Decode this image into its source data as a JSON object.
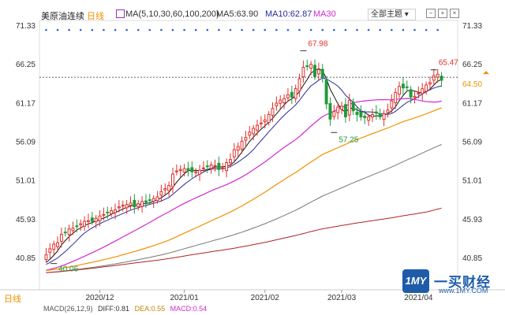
{
  "header": {
    "title": "美原油连续",
    "period": "日线",
    "ma_params": "MA(5,10,30,60,100,200)",
    "ma5": "MA5:63.90",
    "ma10": "MA10:62.87",
    "ma30": "MA30",
    "theme_button": "全部主题"
  },
  "footer": {
    "period": "日线",
    "macd_params": "MACD(26,12,9)",
    "dif": "DIFF:0.81",
    "dea": "DEA:0.55",
    "macd": "MACD:0.54"
  },
  "watermark": {
    "logo": "1MY",
    "name": "一买财经",
    "url": "www.1MY.COM"
  },
  "colors": {
    "up": "#e0302c",
    "down": "#1f9a3a",
    "ma5": "#111111",
    "ma10": "#2a2a9a",
    "ma30": "#d02ad0",
    "ma60": "#f29000",
    "ma100": "#777777",
    "ma200": "#b22222",
    "current": "#f29000",
    "dots": "#2b5fd9"
  },
  "chart_data": {
    "type": "candlestick",
    "title": "美原油连续",
    "y_ticks": [
      "71.33",
      "66.25",
      "61.17",
      "56.09",
      "51.01",
      "45.93",
      "40.85"
    ],
    "ylim": [
      40.85,
      71.33
    ],
    "x_ticks": [
      "2020/12",
      "2021/01",
      "2021/02",
      "2021/03",
      "2021/04"
    ],
    "current_price": "64.50",
    "annotations": [
      {
        "label": "67.98",
        "kind": "high"
      },
      {
        "label": "65.47",
        "kind": "recent-high"
      },
      {
        "label": "57.25",
        "kind": "low"
      },
      {
        "label": "40.06",
        "kind": "period-low"
      }
    ],
    "closes": [
      41.2,
      42.0,
      42.6,
      42.8,
      43.9,
      44.1,
      44.6,
      44.7,
      45.0,
      45.3,
      45.6,
      45.7,
      45.6,
      46.0,
      46.3,
      46.5,
      46.8,
      47.0,
      47.1,
      47.5,
      47.7,
      47.8,
      48.0,
      47.5,
      47.9,
      48.2,
      48.1,
      48.4,
      48.6,
      48.8,
      49.5,
      49.9,
      50.3,
      51.8,
      52.2,
      52.4,
      52.5,
      52.3,
      52.1,
      52.1,
      52.3,
      52.6,
      52.8,
      53.0,
      52.9,
      52.4,
      52.6,
      53.3,
      53.7,
      55.0,
      55.4,
      56.1,
      56.6,
      57.3,
      57.8,
      58.2,
      58.5,
      58.9,
      59.6,
      60.4,
      61.1,
      61.5,
      61.7,
      62.2,
      61.9,
      63.0,
      64.3,
      65.8,
      66.0,
      66.2,
      64.6,
      65.5,
      64.5,
      61.0,
      59.0,
      60.0,
      60.6,
      60.7,
      59.3,
      61.5,
      60.1,
      59.6,
      59.3,
      59.2,
      59.3,
      59.6,
      59.8,
      59.3,
      59.7,
      60.2,
      61.4,
      62.5,
      63.3,
      63.1,
      63.2,
      61.9,
      62.0,
      62.4,
      63.0,
      63.5,
      63.8,
      64.7,
      64.9,
      64.1
    ],
    "ma_series": [
      {
        "name": "MA5"
      },
      {
        "name": "MA10"
      },
      {
        "name": "MA30"
      },
      {
        "name": "MA60"
      },
      {
        "name": "MA100"
      },
      {
        "name": "MA200"
      }
    ]
  }
}
